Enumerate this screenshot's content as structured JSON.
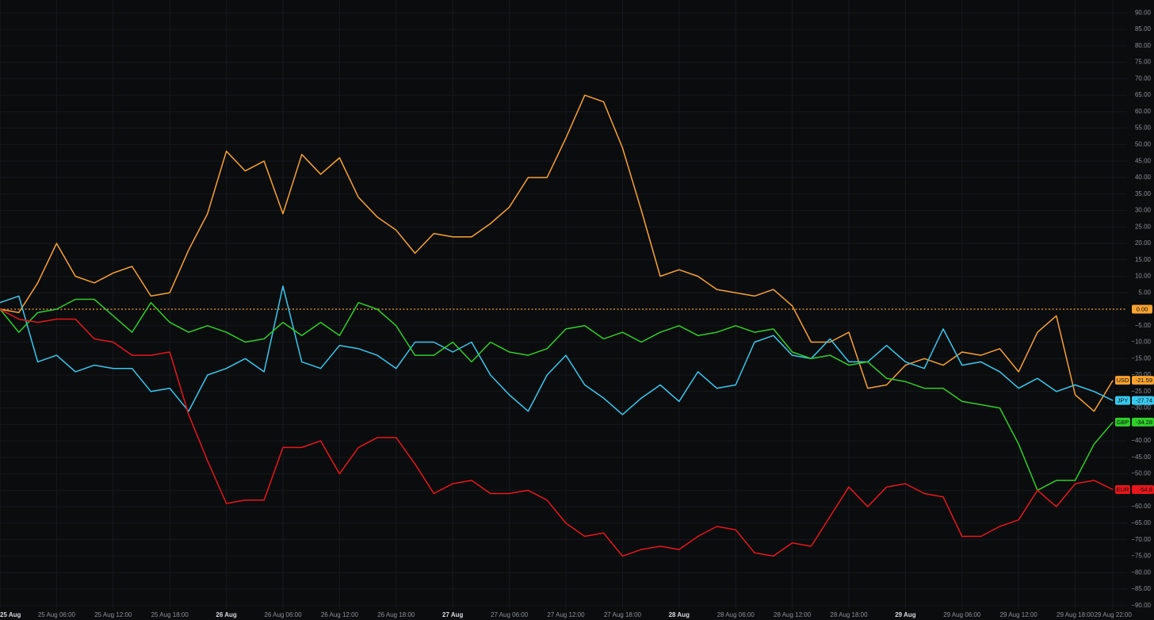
{
  "chart_data": {
    "type": "line",
    "categories": [
      "25 Aug",
      null,
      null,
      "25 Aug 06:00",
      null,
      null,
      "25 Aug 12:00",
      null,
      null,
      "25 Aug 18:00",
      null,
      null,
      "26 Aug",
      null,
      null,
      "26 Aug 06:00",
      null,
      null,
      "26 Aug 12:00",
      null,
      null,
      "26 Aug 18:00",
      null,
      null,
      "27 Aug",
      null,
      null,
      "27 Aug 06:00",
      null,
      null,
      "27 Aug 12:00",
      null,
      null,
      "27 Aug 18:00",
      null,
      null,
      "28 Aug",
      null,
      null,
      "28 Aug 06:00",
      null,
      null,
      "28 Aug 12:00",
      null,
      null,
      "28 Aug 18:00",
      null,
      null,
      "29 Aug",
      null,
      null,
      "29 Aug 06:00",
      null,
      null,
      "29 Aug 12:00",
      null,
      null,
      "29 Aug 18:00",
      null,
      "29 Aug 22:00"
    ],
    "series": [
      {
        "name": "USD",
        "color": "#f7a231",
        "values": [
          0,
          -1,
          8,
          20,
          10,
          8,
          11,
          13,
          4,
          5,
          18,
          29,
          48,
          42,
          45,
          29,
          47,
          41,
          46,
          34,
          28,
          24,
          17,
          23,
          22,
          22,
          26,
          31,
          40,
          40,
          52,
          65,
          63,
          49,
          30,
          10,
          12,
          10,
          6,
          5,
          4,
          6,
          1,
          -10,
          -10,
          -7,
          -24,
          -23,
          -17,
          -15,
          -17,
          -13,
          -14,
          -12,
          -19,
          -7,
          -2,
          -26,
          -31,
          -21.59
        ]
      },
      {
        "name": "JPY",
        "color": "#38c9ef",
        "values": [
          2,
          4,
          -16,
          -14,
          -19,
          -17,
          -18,
          -18,
          -25,
          -24,
          -31,
          -20,
          -18,
          -15,
          -19,
          7,
          -16,
          -18,
          -11,
          -12,
          -14,
          -18,
          -10,
          -10,
          -13,
          -10,
          -20,
          -26,
          -31,
          -20,
          -14,
          -23,
          -27,
          -32,
          -27,
          -23,
          -28,
          -19,
          -24,
          -23,
          -10,
          -8,
          -14,
          -15,
          -9,
          -16,
          -16,
          -11,
          -16,
          -18,
          -6,
          -17,
          -16,
          -19,
          -24,
          -21,
          -25,
          -23,
          -25,
          -27.74
        ]
      },
      {
        "name": "GBP",
        "color": "#2fcf2a",
        "values": [
          0,
          -7,
          -1,
          0,
          3,
          3,
          -2,
          -7,
          2,
          -4,
          -7,
          -5,
          -7,
          -10,
          -9,
          -4,
          -8,
          -4,
          -8,
          2,
          0,
          -5,
          -14,
          -14,
          -10,
          -16,
          -10,
          -13,
          -14,
          -12,
          -6,
          -5,
          -9,
          -7,
          -10,
          -7,
          -5,
          -8,
          -7,
          -5,
          -7,
          -6,
          -13,
          -15,
          -14,
          -17,
          -16,
          -21,
          -22,
          -24,
          -24,
          -28,
          -29,
          -30,
          -41,
          -55,
          -52,
          -52,
          -41,
          -34.28
        ]
      },
      {
        "name": "EUR",
        "color": "#e8161b",
        "values": [
          0,
          -3,
          -4,
          -3,
          -3,
          -9,
          -10,
          -14,
          -14,
          -13,
          -32,
          -46,
          -59,
          -58,
          -58,
          -42,
          -42,
          -40,
          -50,
          -42,
          -39,
          -39,
          -47,
          -56,
          -53,
          -52,
          -56,
          -56,
          -55,
          -58,
          -65,
          -69,
          -68,
          -75,
          -73,
          -72,
          -73,
          -69,
          -66,
          -67,
          -74,
          -75,
          -71,
          -72,
          -63,
          -54,
          -60,
          -54,
          -53,
          -56,
          -57,
          -69,
          -69,
          -66,
          -64,
          -55,
          -60,
          -53,
          -52,
          -54.8
        ]
      }
    ],
    "baseline": {
      "value": 0,
      "label": "0.00",
      "color": "#f7a231"
    },
    "ylim": [
      -92,
      92
    ],
    "yticks": [
      {
        "value": 90,
        "label": "90.00"
      },
      {
        "value": 85,
        "label": "85.00"
      },
      {
        "value": 80,
        "label": "80.00"
      },
      {
        "value": 75,
        "label": "75.00"
      },
      {
        "value": 70,
        "label": "70.00"
      },
      {
        "value": 65,
        "label": "65.00"
      },
      {
        "value": 60,
        "label": "60.00"
      },
      {
        "value": 55,
        "label": "55.00"
      },
      {
        "value": 50,
        "label": "50.00"
      },
      {
        "value": 45,
        "label": "45.00"
      },
      {
        "value": 40,
        "label": "40.00"
      },
      {
        "value": 35,
        "label": "35.00"
      },
      {
        "value": 30,
        "label": "30.00"
      },
      {
        "value": 25,
        "label": "25.00"
      },
      {
        "value": 20,
        "label": "20.00"
      },
      {
        "value": 15,
        "label": "15.00"
      },
      {
        "value": 10,
        "label": "10.00"
      },
      {
        "value": 5,
        "label": "5.00"
      },
      {
        "value": -5,
        "label": "−5.00"
      },
      {
        "value": -10,
        "label": "−10.00"
      },
      {
        "value": -15,
        "label": "−15.00"
      },
      {
        "value": -20,
        "label": "−20.00"
      },
      {
        "value": -25,
        "label": "−25.00"
      },
      {
        "value": -30,
        "label": "−30.00"
      },
      {
        "value": -35,
        "label": "−35.00"
      },
      {
        "value": -40,
        "label": "−40.00"
      },
      {
        "value": -45,
        "label": "−45.00"
      },
      {
        "value": -50,
        "label": "−50.00"
      },
      {
        "value": -55,
        "label": "−55.00"
      },
      {
        "value": -60,
        "label": "−60.00"
      },
      {
        "value": -65,
        "label": "−65.00"
      },
      {
        "value": -70,
        "label": "−70.00"
      },
      {
        "value": -75,
        "label": "−75.00"
      },
      {
        "value": -80,
        "label": "−80.00"
      },
      {
        "value": -85,
        "label": "−85.00"
      },
      {
        "value": -90,
        "label": "−90.00"
      }
    ],
    "grid": true
  }
}
